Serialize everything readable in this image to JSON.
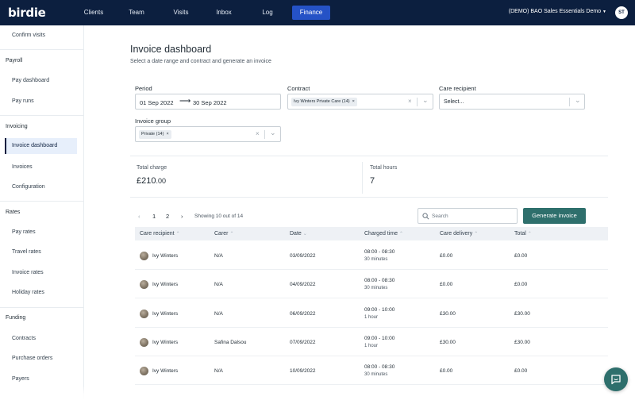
{
  "app": {
    "logo": "birdie"
  },
  "nav": {
    "items": [
      {
        "label": "Clients"
      },
      {
        "label": "Team"
      },
      {
        "label": "Visits"
      },
      {
        "label": "Inbox"
      },
      {
        "label": "Log"
      },
      {
        "label": "Finance",
        "active": true
      }
    ],
    "org_name": "(DEMO) BAO Sales Essentials Demo",
    "user_initials": "ST"
  },
  "sidebar": {
    "top_item": "Confirm visits",
    "sections": [
      {
        "title": "Payroll",
        "items": [
          "Pay dashboard",
          "Pay runs"
        ]
      },
      {
        "title": "Invoicing",
        "items": [
          "Invoice dashboard",
          "Invoices",
          "Configuration"
        ]
      },
      {
        "title": "Rates",
        "items": [
          "Pay rates",
          "Travel rates",
          "Invoice rates",
          "Holiday rates"
        ]
      },
      {
        "title": "Funding",
        "items": [
          "Contracts",
          "Purchase orders",
          "Payers"
        ]
      }
    ],
    "active_item": "Invoice dashboard"
  },
  "page": {
    "title": "Invoice dashboard",
    "subtitle": "Select a date range and contract and generate an invoice"
  },
  "filters": {
    "period": {
      "label": "Period",
      "start": "01 Sep 2022",
      "end": "30 Sep 2022"
    },
    "contract": {
      "label": "Contract",
      "chip": "Ivy Winters Private Care (14)"
    },
    "care_recipient": {
      "label": "Care recipient",
      "placeholder": "Select..."
    },
    "invoice_group": {
      "label": "Invoice group",
      "chip": "Private (14)"
    }
  },
  "summary": {
    "total_charge_label": "Total charge",
    "total_charge_main": "£210",
    "total_charge_decimals": ".00",
    "total_hours_label": "Total hours",
    "total_hours": "7"
  },
  "pagination": {
    "page1": "1",
    "page2": "2",
    "showing": "Showing 10 out of 14"
  },
  "search": {
    "placeholder": "Search"
  },
  "actions": {
    "generate": "Generate invoice"
  },
  "table": {
    "headers": [
      "Care recipient",
      "Carer",
      "Date",
      "Charged time",
      "Care delivery",
      "Total"
    ],
    "rows": [
      {
        "recipient": "Ivy Winters",
        "carer": "N/A",
        "date": "03/09/2022",
        "time": "08:00 - 08:30",
        "duration": "30 minutes",
        "delivery": "£0.00",
        "total": "£0.00"
      },
      {
        "recipient": "Ivy Winters",
        "carer": "N/A",
        "date": "04/09/2022",
        "time": "08:00 - 08:30",
        "duration": "30 minutes",
        "delivery": "£0.00",
        "total": "£0.00"
      },
      {
        "recipient": "Ivy Winters",
        "carer": "N/A",
        "date": "06/09/2022",
        "time": "09:00 - 10:00",
        "duration": "1 hour",
        "delivery": "£30.00",
        "total": "£30.00"
      },
      {
        "recipient": "Ivy Winters",
        "carer": "Safina Dalsou",
        "date": "07/09/2022",
        "time": "09:00 - 10:00",
        "duration": "1 hour",
        "delivery": "£30.00",
        "total": "£30.00"
      },
      {
        "recipient": "Ivy Winters",
        "carer": "N/A",
        "date": "10/09/2022",
        "time": "08:00 - 08:30",
        "duration": "30 minutes",
        "delivery": "£0.00",
        "total": "£0.00"
      }
    ]
  },
  "colors": {
    "nav_bg": "#0c1f3f",
    "nav_active": "#2552c6",
    "primary": "#2e6f6c"
  }
}
